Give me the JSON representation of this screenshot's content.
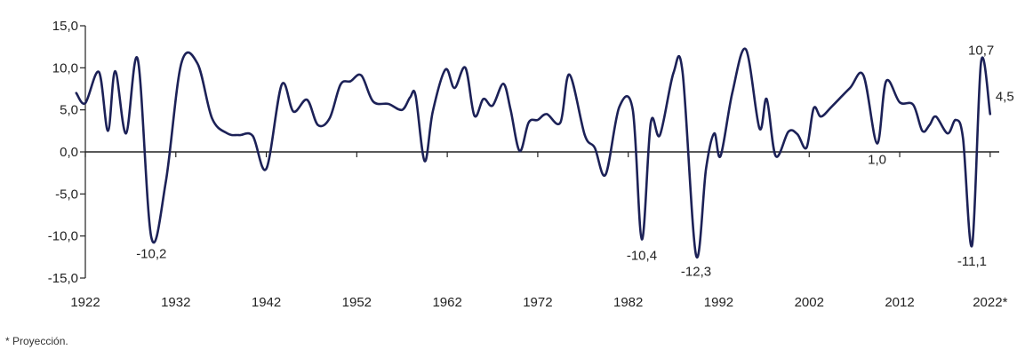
{
  "chart_data": {
    "type": "line",
    "title": "",
    "xlabel": "",
    "ylabel": "",
    "xlim": [
      1922,
      2023
    ],
    "ylim": [
      -15,
      15
    ],
    "grid": false,
    "x_ticks": [
      1922,
      1932,
      1942,
      1952,
      1962,
      1972,
      1982,
      1992,
      2002,
      2012,
      2022
    ],
    "x_tick_labels": [
      "1922",
      "1932",
      "1942",
      "1952",
      "1962",
      "1972",
      "1982",
      "1992",
      "2002",
      "2012",
      "2022*"
    ],
    "y_ticks": [
      15,
      10,
      5,
      0,
      -5,
      -10,
      -15
    ],
    "y_tick_labels": [
      "15,0",
      "10,0",
      "5,0",
      "0,0",
      "-5,0",
      "-10,0",
      "-15,0"
    ],
    "line_color": "#1c2157",
    "series": [
      {
        "x": [
          1921.0,
          1922.0,
          1923.5,
          1924.5,
          1925.3,
          1926.5,
          1927.8,
          1929.3,
          1930.9,
          1932.6,
          1934.4,
          1936.0,
          1937.7,
          1939.0,
          1940.5,
          1942.0,
          1943.7,
          1945.0,
          1946.5,
          1947.7,
          1949.0,
          1950.2,
          1951.3,
          1952.5,
          1953.8,
          1955.5,
          1957.0,
          1957.9,
          1958.5,
          1959.5,
          1960.4,
          1961.8,
          1962.8,
          1964.0,
          1965.0,
          1966.0,
          1967.0,
          1968.2,
          1969.0,
          1970.0,
          1971.0,
          1972.0,
          1973.0,
          1974.5,
          1975.5,
          1977.2,
          1978.3,
          1979.5,
          1981.0,
          1982.5,
          1983.5,
          1984.5,
          1985.5,
          1987.0,
          1988.0,
          1989.5,
          1990.6,
          1991.5,
          1992.2,
          1993.5,
          1995.0,
          1996.5,
          1997.3,
          1998.3,
          1999.7,
          2000.7,
          2001.7,
          2002.5,
          2003.3,
          2004.5,
          2006.5,
          2008.0,
          2009.5,
          2010.5,
          2012.0,
          2013.5,
          2014.5,
          2015.3,
          2016.0,
          2017.3,
          2018.2,
          2019.0,
          2020.0,
          2021.0,
          2022.0
        ],
        "y": [
          7.0,
          5.8,
          9.5,
          2.5,
          9.6,
          2.2,
          11.0,
          -10.2,
          -3.5,
          10.5,
          10.5,
          4.0,
          2.2,
          2.0,
          1.9,
          -2.0,
          8.0,
          4.8,
          6.2,
          3.2,
          4.0,
          8.0,
          8.4,
          9.1,
          6.0,
          5.7,
          5.0,
          6.5,
          6.7,
          -1.1,
          4.8,
          9.8,
          7.6,
          10.0,
          4.3,
          6.3,
          5.5,
          8.1,
          5.0,
          0.1,
          3.5,
          3.8,
          4.5,
          3.5,
          9.2,
          2.0,
          0.5,
          -2.7,
          5.3,
          5.0,
          -10.4,
          3.5,
          2.0,
          9.4,
          9.5,
          -12.3,
          -2.0,
          2.2,
          -0.5,
          7.0,
          12.2,
          2.8,
          6.3,
          -0.5,
          2.4,
          2.1,
          0.5,
          5.2,
          4.2,
          5.4,
          7.6,
          9.1,
          1.0,
          8.4,
          5.9,
          5.6,
          2.5,
          3.2,
          4.2,
          2.2,
          3.8,
          1.6,
          -11.1,
          10.7,
          4.5
        ]
      }
    ],
    "annotations": [
      {
        "text": "-10,2",
        "x": 1929.3,
        "y": -10.2,
        "pos": "below"
      },
      {
        "text": "-10,4",
        "x": 1983.5,
        "y": -10.4,
        "pos": "below"
      },
      {
        "text": "-12,3",
        "x": 1989.5,
        "y": -12.3,
        "pos": "below"
      },
      {
        "text": "1,0",
        "x": 2009.5,
        "y": 1.0,
        "pos": "below"
      },
      {
        "text": "-11,1",
        "x": 2020.0,
        "y": -11.1,
        "pos": "below"
      },
      {
        "text": "10,7",
        "x": 2021.0,
        "y": 10.7,
        "pos": "above"
      },
      {
        "text": "4,5",
        "x": 2022.0,
        "y": 4.5,
        "pos": "right"
      }
    ]
  },
  "footnote": "* Proyección."
}
